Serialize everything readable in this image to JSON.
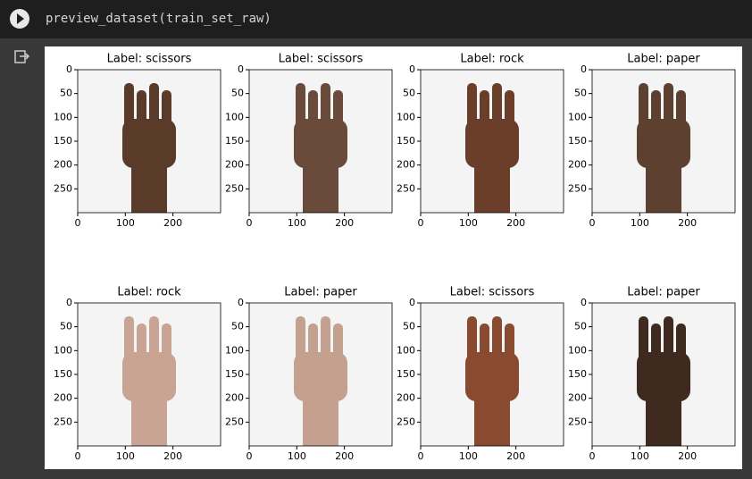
{
  "cell": {
    "code": "preview_dataset(train_set_raw)"
  },
  "output": {
    "plots": [
      {
        "title": "Label: scissors"
      },
      {
        "title": "Label: scissors"
      },
      {
        "title": "Label: rock"
      },
      {
        "title": "Label: paper"
      },
      {
        "title": "Label: rock"
      },
      {
        "title": "Label: paper"
      },
      {
        "title": "Label: scissors"
      },
      {
        "title": "Label: paper"
      }
    ],
    "xlim": [
      0,
      300
    ],
    "ylim": [
      0,
      300
    ],
    "xticks": [
      0,
      100,
      200
    ],
    "yticks": [
      0,
      50,
      100,
      150,
      200,
      250
    ]
  }
}
